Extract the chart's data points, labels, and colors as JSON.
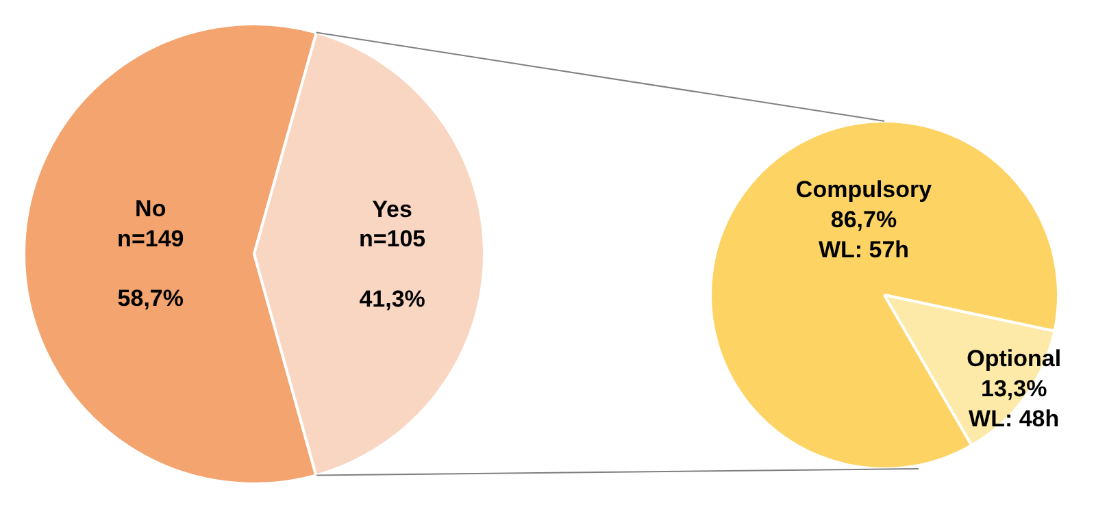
{
  "chart_data": [
    {
      "type": "pie",
      "categories": [
        "No",
        "Yes"
      ],
      "values": [
        58.7,
        41.3
      ],
      "colors": [
        "#f3a46f",
        "#f9d6c2"
      ],
      "value_labels": [
        "n=149\n\n58,7%",
        "n=105\n\n41,3%"
      ]
    },
    {
      "type": "pie",
      "categories": [
        "Compulsory",
        "Optional"
      ],
      "values": [
        86.7,
        13.3
      ],
      "colors": [
        "#fdd363",
        "#fde9a8"
      ],
      "value_labels": [
        "86,7%\nWL: 57h",
        "13,3%\nWL: 48h"
      ]
    }
  ]
}
